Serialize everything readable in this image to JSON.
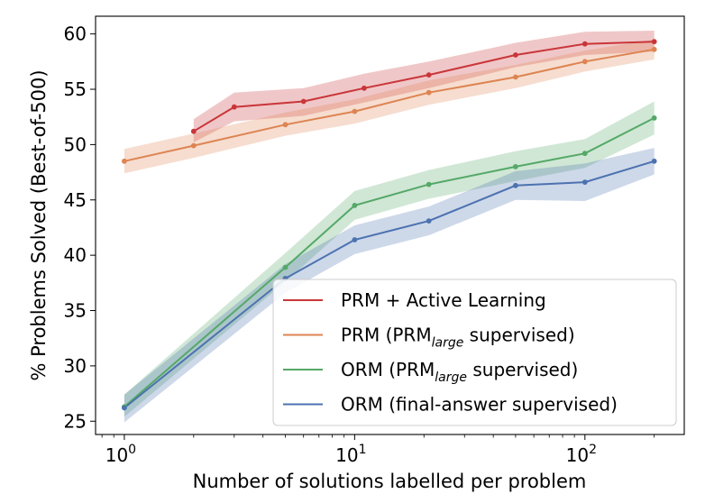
{
  "chart_data": {
    "type": "line",
    "xlabel": "Number of solutions labelled per problem",
    "ylabel": "% Problems Solved (Best-of-500)",
    "xscale": "log",
    "xlim": [
      0.75,
      270
    ],
    "ylim": [
      23.8,
      61.6
    ],
    "x_ticks": [
      {
        "value": 1,
        "base": "10",
        "exp": "0"
      },
      {
        "value": 10,
        "base": "10",
        "exp": "1"
      },
      {
        "value": 100,
        "base": "10",
        "exp": "2"
      }
    ],
    "y_ticks": [
      25,
      30,
      35,
      40,
      45,
      50,
      55,
      60
    ],
    "grid": false,
    "legend_position": "lower-right",
    "series": [
      {
        "name": "PRM + Active Learning",
        "color": "#c9363a",
        "x": [
          2,
          3,
          6,
          11,
          21,
          50,
          100,
          200
        ],
        "y": [
          51.2,
          53.4,
          53.9,
          55.1,
          56.3,
          58.1,
          59.1,
          59.3
        ],
        "lower": [
          50.2,
          52.1,
          52.6,
          53.8,
          55.1,
          57.0,
          58.1,
          58.4
        ],
        "upper": [
          52.3,
          54.7,
          55.1,
          56.4,
          57.5,
          59.2,
          60.2,
          60.3
        ]
      },
      {
        "name_parts": [
          "PRM (PRM",
          "large",
          " supervised)"
        ],
        "color": "#dd8452",
        "x": [
          1,
          2,
          5,
          10,
          21,
          50,
          100,
          200
        ],
        "y": [
          48.5,
          49.9,
          51.8,
          53.0,
          54.7,
          56.1,
          57.5,
          58.6
        ],
        "lower": [
          47.4,
          48.8,
          50.8,
          51.9,
          53.6,
          55.1,
          56.6,
          57.7
        ],
        "upper": [
          49.6,
          51.0,
          52.9,
          54.1,
          55.8,
          57.2,
          58.5,
          59.5
        ]
      },
      {
        "name_parts": [
          "ORM (PRM",
          "large",
          " supervised)"
        ],
        "color": "#55a868",
        "x": [
          1,
          5,
          10,
          21,
          50,
          100,
          200
        ],
        "y": [
          26.3,
          38.9,
          44.5,
          46.4,
          48.0,
          49.2,
          52.4
        ],
        "lower": [
          25.4,
          37.6,
          43.2,
          45.1,
          46.7,
          47.9,
          50.9
        ],
        "upper": [
          27.4,
          40.2,
          45.8,
          47.7,
          49.4,
          50.5,
          53.9
        ]
      },
      {
        "name": "ORM (final-answer supervised)",
        "color": "#4c72b0",
        "x": [
          1,
          5,
          10,
          21,
          50,
          100,
          200
        ],
        "y": [
          26.2,
          37.9,
          41.4,
          43.1,
          46.3,
          46.6,
          48.5
        ],
        "lower": [
          24.9,
          36.6,
          40.1,
          41.8,
          45.0,
          44.9,
          47.3
        ],
        "upper": [
          27.4,
          39.2,
          42.7,
          44.4,
          47.6,
          48.3,
          49.7
        ]
      }
    ]
  }
}
